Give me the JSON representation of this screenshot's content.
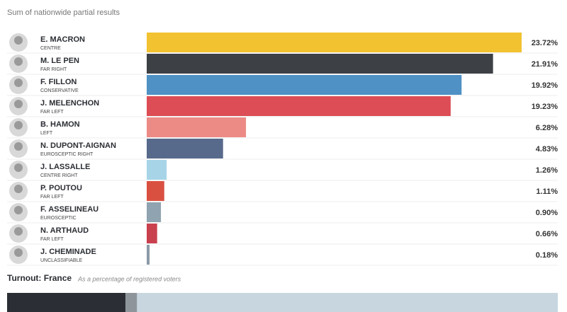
{
  "chart_data": {
    "type": "bar",
    "subtitle": "Sum of nationwide partial results",
    "categories": [
      "E. MACRON",
      "M. LE PEN",
      "F. FILLON",
      "J. MELENCHON",
      "B. HAMON",
      "N. DUPONT-AIGNAN",
      "J. LASSALLE",
      "P. POUTOU",
      "F. ASSELINEAU",
      "N. ARTHAUD",
      "J. CHEMINADE"
    ],
    "parties": [
      "CENTRE",
      "FAR RIGHT",
      "CONSERVATIVE",
      "FAR LEFT",
      "LEFT",
      "EUROSCEPTIC RIGHT",
      "CENTRE RIGHT",
      "FAR LEFT",
      "EUROSCEPTIC",
      "FAR LEFT",
      "UNCLASSIFIABLE"
    ],
    "values": [
      23.72,
      21.91,
      19.92,
      19.23,
      6.28,
      4.83,
      1.26,
      1.11,
      0.9,
      0.66,
      0.18
    ],
    "value_labels": [
      "23.72%",
      "21.91%",
      "19.92%",
      "19.23%",
      "6.28%",
      "4.83%",
      "1.26%",
      "1.11%",
      "0.90%",
      "0.66%",
      "0.18%"
    ],
    "colors": [
      "#f2c230",
      "#3d4044",
      "#4f91c4",
      "#dc4d55",
      "#ec8a86",
      "#576a8c",
      "#a8d4e8",
      "#d95040",
      "#8fa3b0",
      "#c9404f",
      "#8b9aa6"
    ],
    "turnout": {
      "title": "Turnout: France",
      "note": "As a percentage of registered voters",
      "xlim": [
        0,
        100
      ],
      "segments": [
        {
          "value": 21.5,
          "color": "#2b2f35"
        },
        {
          "value": 2.1,
          "color": "#8e969c"
        },
        {
          "value": 76.4,
          "color": "#c8d7df"
        }
      ]
    }
  }
}
